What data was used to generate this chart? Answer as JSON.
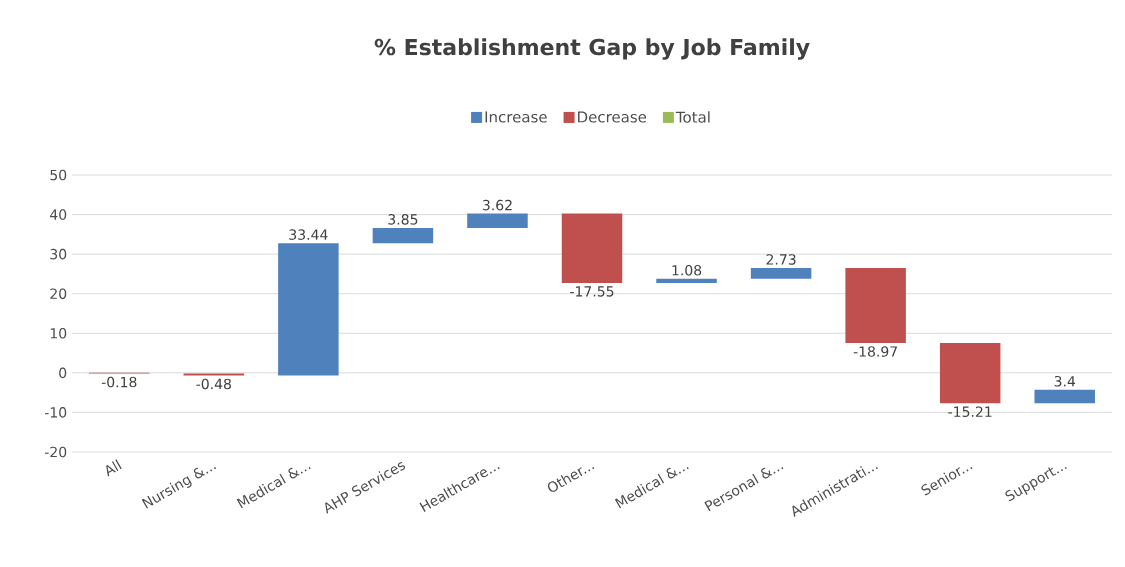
{
  "chart_data": {
    "type": "bar",
    "title": "% Establishment Gap by Job Family",
    "categories": [
      "All",
      "Nursing &...",
      "Medical &...",
      "AHP Services",
      "Healthcare...",
      "Other...",
      "Medical &...",
      "Personal &...",
      "Administrati...",
      "Senior...",
      "Support..."
    ],
    "series": [
      {
        "name": "Increase",
        "color": "#4f81bd",
        "values": [
          null,
          null,
          33.44,
          3.85,
          3.62,
          null,
          1.08,
          2.73,
          null,
          null,
          3.4
        ],
        "base": [
          null,
          null,
          -0.66,
          32.78,
          36.63,
          null,
          22.7,
          23.78,
          null,
          null,
          -7.67
        ]
      },
      {
        "name": "Decrease",
        "color": "#c0504d",
        "values": [
          -0.18,
          -0.48,
          null,
          null,
          null,
          -17.55,
          null,
          null,
          -18.97,
          -15.21,
          null
        ],
        "base": [
          0,
          -0.18,
          null,
          null,
          null,
          40.25,
          null,
          null,
          26.51,
          7.54,
          null
        ]
      },
      {
        "name": "Total",
        "color": "#9bbb59",
        "values": [
          null,
          null,
          null,
          null,
          null,
          null,
          null,
          null,
          null,
          null,
          null
        ]
      }
    ],
    "ylim": [
      -20,
      50
    ],
    "yticks": [
      -20,
      -10,
      0,
      10,
      20,
      30,
      40,
      50
    ],
    "grid": "y",
    "legend": "top",
    "data_labels": true
  }
}
